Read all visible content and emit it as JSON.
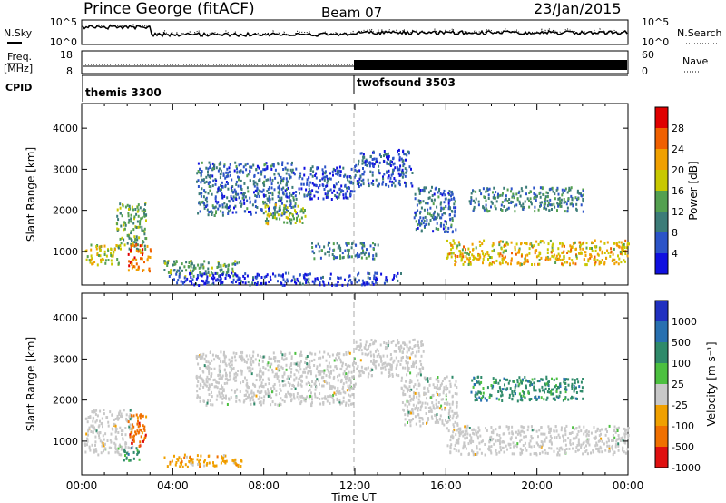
{
  "header": {
    "title": "Prince George (fitACF)",
    "beam": "Beam 07",
    "date": "23/Jan/2015"
  },
  "top_panel": {
    "nsky_label": "N.Sky",
    "nsky_ticks": [
      "10^5",
      "10^0"
    ],
    "nsearch_label": "N.Search",
    "nsearch_ticks": [
      "10^5",
      "10^0"
    ],
    "freq_label_1": "Freq.",
    "freq_label_2": "[MHz]",
    "freq_ticks": [
      "18",
      "8"
    ],
    "nave_label": "Nave",
    "nave_ticks": [
      "60",
      "0"
    ],
    "cpid_label": "CPID",
    "cpid_segments": [
      {
        "name": "themis 3300",
        "start_hour": 0
      },
      {
        "name": "twofsound 3503",
        "start_hour": 12
      }
    ]
  },
  "chart_data": [
    {
      "type": "heatmap",
      "panel": "power",
      "ylabel": "Slant Range [km]",
      "xlabel": "Time UT",
      "x_ticks": [
        "00:00",
        "04:00",
        "08:00",
        "12:00",
        "16:00",
        "20:00",
        "00:00"
      ],
      "x_range_hours": [
        0,
        24
      ],
      "y_ticks": [
        1000,
        2000,
        3000,
        4000
      ],
      "ylim": [
        180,
        4600
      ],
      "colorbar_label": "Power [dB]",
      "colorbar_ticks": [
        4,
        8,
        12,
        16,
        20,
        24,
        28
      ],
      "colorbar_range": [
        0,
        32
      ],
      "colors": [
        "#1010e0",
        "#2c54c8",
        "#3c7c78",
        "#54a050",
        "#c8c800",
        "#f0a000",
        "#f06000",
        "#e00000"
      ],
      "echo_regions": [
        {
          "t": [
            0.1,
            1.6
          ],
          "r": [
            700,
            1200
          ],
          "value": 18
        },
        {
          "t": [
            1.5,
            2.8
          ],
          "r": [
            1000,
            2200
          ],
          "value": 14
        },
        {
          "t": [
            2.0,
            3.0
          ],
          "r": [
            550,
            1200
          ],
          "value": 26
        },
        {
          "t": [
            3.6,
            7.0
          ],
          "r": [
            420,
            800
          ],
          "value": 12
        },
        {
          "t": [
            5.0,
            9.4
          ],
          "r": [
            1900,
            3200
          ],
          "value": 8
        },
        {
          "t": [
            8.0,
            9.8
          ],
          "r": [
            1700,
            2200
          ],
          "value": 16
        },
        {
          "t": [
            9.5,
            12.0
          ],
          "r": [
            2300,
            3100
          ],
          "value": 6
        },
        {
          "t": [
            12.0,
            14.5
          ],
          "r": [
            2600,
            3500
          ],
          "value": 6
        },
        {
          "t": [
            10.0,
            13.0
          ],
          "r": [
            850,
            1250
          ],
          "value": 10
        },
        {
          "t": [
            14.5,
            16.4
          ],
          "r": [
            1500,
            2600
          ],
          "value": 8
        },
        {
          "t": [
            16.0,
            24.0
          ],
          "r": [
            700,
            1300
          ],
          "value": 20
        },
        {
          "t": [
            17.0,
            22.0
          ],
          "r": [
            2000,
            2600
          ],
          "value": 10
        },
        {
          "t": [
            4.0,
            14.0
          ],
          "r": [
            200,
            500
          ],
          "value": 4
        }
      ]
    },
    {
      "type": "heatmap",
      "panel": "velocity",
      "ylabel": "Slant Range [km]",
      "xlabel": "Time UT",
      "x_ticks": [
        "00:00",
        "04:00",
        "08:00",
        "12:00",
        "16:00",
        "20:00",
        "00:00"
      ],
      "x_range_hours": [
        0,
        24
      ],
      "y_ticks": [
        1000,
        2000,
        3000,
        4000
      ],
      "ylim": [
        180,
        4600
      ],
      "colorbar_label": "Velocity [m s⁻¹]",
      "colorbar_ticks": [
        "1000",
        "500",
        "100",
        "25",
        "-25",
        "-100",
        "-500",
        "-1000"
      ],
      "colors": [
        "#2030c0",
        "#2870b0",
        "#2f8a6a",
        "#4cc040",
        "#c8c8c8",
        "#f0a000",
        "#f07000",
        "#e01010"
      ],
      "echo_regions": [
        {
          "t": [
            0.1,
            2.2
          ],
          "r": [
            700,
            1800
          ],
          "value": "ground"
        },
        {
          "t": [
            2.0,
            2.8
          ],
          "r": [
            900,
            1700
          ],
          "value": "-500"
        },
        {
          "t": [
            1.8,
            2.5
          ],
          "r": [
            550,
            900
          ],
          "value": "100"
        },
        {
          "t": [
            3.6,
            7.0
          ],
          "r": [
            400,
            700
          ],
          "value": "-100"
        },
        {
          "t": [
            5.0,
            12.0
          ],
          "r": [
            1900,
            3200
          ],
          "value": "ground"
        },
        {
          "t": [
            12.0,
            15.0
          ],
          "r": [
            2600,
            3500
          ],
          "value": "ground"
        },
        {
          "t": [
            14.0,
            16.5
          ],
          "r": [
            1400,
            2600
          ],
          "value": "ground"
        },
        {
          "t": [
            16.0,
            24.0
          ],
          "r": [
            700,
            1400
          ],
          "value": "ground"
        },
        {
          "t": [
            17.0,
            22.0
          ],
          "r": [
            2000,
            2600
          ],
          "value": "100"
        }
      ]
    }
  ]
}
